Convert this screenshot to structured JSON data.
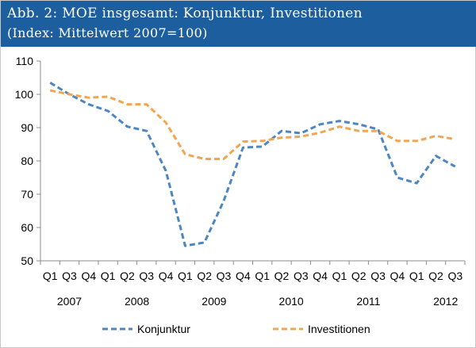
{
  "header": {
    "title": "Abb. 2: MOE insgesamt: Konjunktur, Investitionen",
    "subtitle": "(Index: Mittelwert 2007=100)"
  },
  "colors": {
    "header_bg": "#1d5f9e",
    "konjunktur": "#4d87c2",
    "investitionen": "#f4a550"
  },
  "chart_data": {
    "type": "line",
    "categories": [
      "Q1",
      "Q3",
      "Q4",
      "Q1",
      "Q2",
      "Q3",
      "Q4",
      "Q1",
      "Q2",
      "Q3",
      "Q4",
      "Q1",
      "Q2",
      "Q3",
      "Q4",
      "Q1",
      "Q2",
      "Q3",
      "Q4",
      "Q1",
      "Q2",
      "Q3"
    ],
    "year_labels": [
      {
        "label": "2007",
        "index": 1
      },
      {
        "label": "2008",
        "index": 4.5
      },
      {
        "label": "2009",
        "index": 8.5
      },
      {
        "label": "2010",
        "index": 12.5
      },
      {
        "label": "2011",
        "index": 16.5
      },
      {
        "label": "2012",
        "index": 20.5
      }
    ],
    "ylim": [
      50,
      110
    ],
    "yticks": [
      50,
      60,
      70,
      80,
      90,
      100,
      110
    ],
    "grid": false,
    "legend_position": "bottom",
    "series": [
      {
        "name": "Konjunktur",
        "values": [
          103.5,
          100,
          97,
          95,
          90.3,
          89,
          77,
          54.5,
          55.5,
          68,
          84,
          84.3,
          89,
          88.3,
          91,
          92,
          91,
          89.5,
          75,
          73.3,
          81.5,
          78.3
        ]
      },
      {
        "name": "Investitionen",
        "values": [
          101.2,
          100,
          99,
          99.3,
          97,
          97,
          91.5,
          82,
          80.6,
          80.6,
          85.8,
          86,
          87,
          87.3,
          88.5,
          90.3,
          89,
          89,
          86,
          86,
          87.5,
          86.5
        ]
      }
    ]
  }
}
